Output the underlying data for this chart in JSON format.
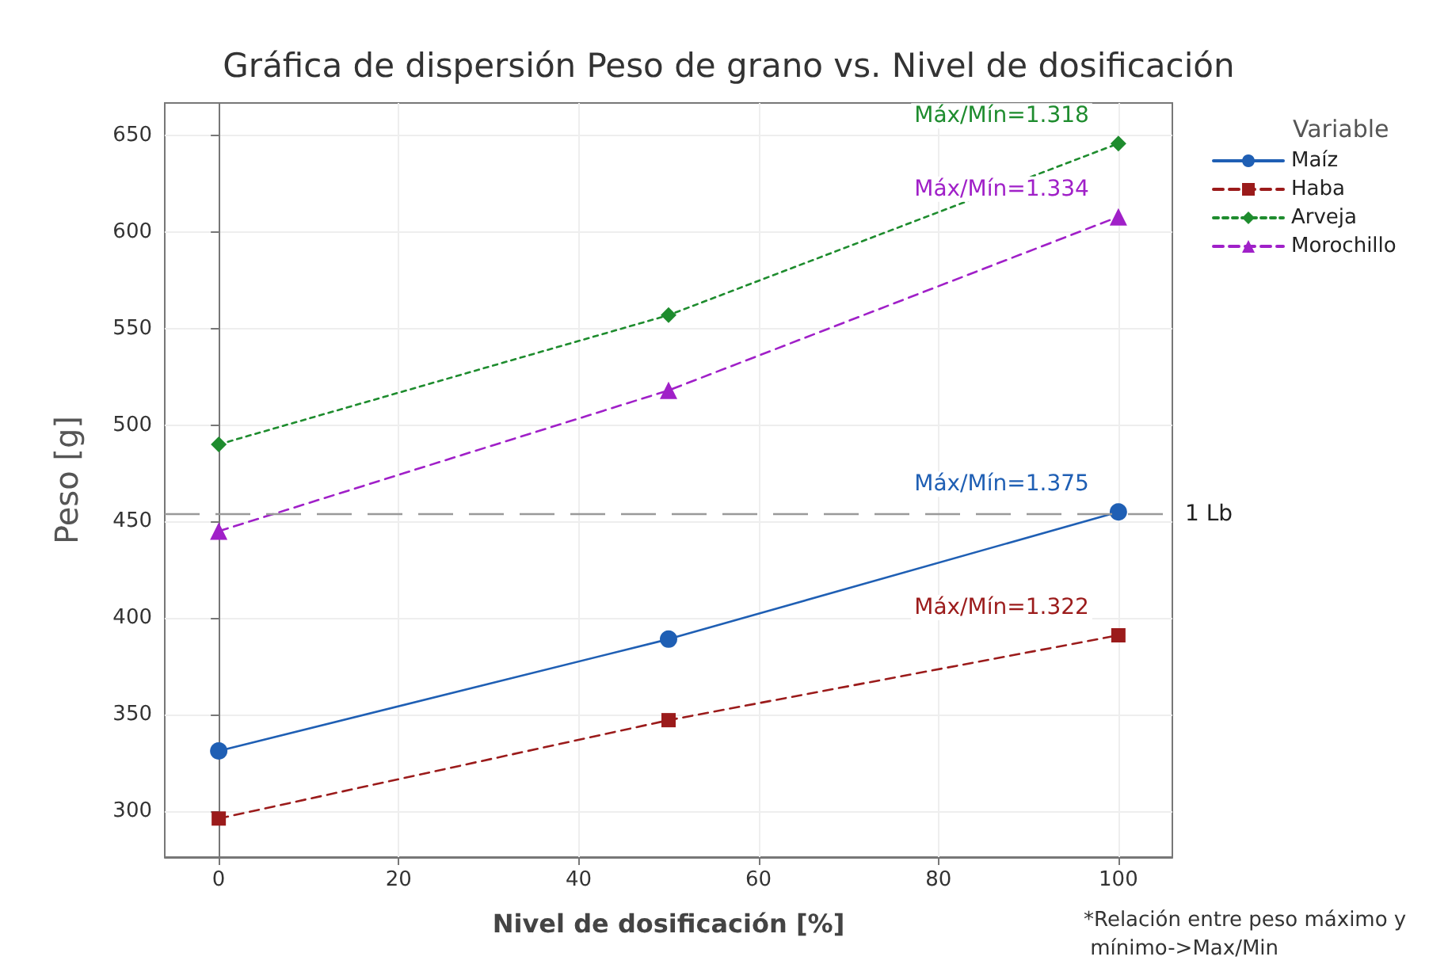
{
  "chart_data": {
    "type": "line",
    "title": "Gráfica de dispersión Peso de grano vs. Nivel de dosificación",
    "xlabel": "Nivel de dosificación [%]",
    "ylabel": "Peso [g]",
    "legend_title": "Variable",
    "x": [
      0,
      50,
      100
    ],
    "series": [
      {
        "name": "Maíz",
        "color": "#1f5fb4",
        "values": [
          331,
          389,
          455
        ],
        "marker": "circle",
        "line_style": "solid"
      },
      {
        "name": "Haba",
        "color": "#9b1b1b",
        "values": [
          296,
          347,
          391
        ],
        "marker": "square",
        "line_style": "dashed"
      },
      {
        "name": "Arveja",
        "color": "#1e8c2e",
        "values": [
          490,
          557,
          646
        ],
        "marker": "diamond",
        "line_style": "dotted"
      },
      {
        "name": "Morochillo",
        "color": "#a020c8",
        "values": [
          445,
          518,
          608
        ],
        "marker": "triangle",
        "line_style": "dashed"
      }
    ],
    "xlim": [
      -6,
      106
    ],
    "xticks": [
      0,
      20,
      40,
      60,
      80,
      100
    ],
    "ylim": [
      276,
      667
    ],
    "yticks": [
      300,
      350,
      400,
      450,
      500,
      550,
      600,
      650
    ],
    "grid": true,
    "legend": "top right",
    "ref_lines": [
      {
        "axis": "y",
        "value": 454,
        "label": "1 Lb",
        "color": "#999999",
        "line_style": "dashed"
      }
    ],
    "annotations": [
      "Máx/Mín=1.318",
      "Máx/Mín=1.334",
      "Máx/Mín=1.375",
      "Máx/Mín=1.322",
      "*Relación entre peso máximo y mínimo->Max/Min"
    ]
  }
}
